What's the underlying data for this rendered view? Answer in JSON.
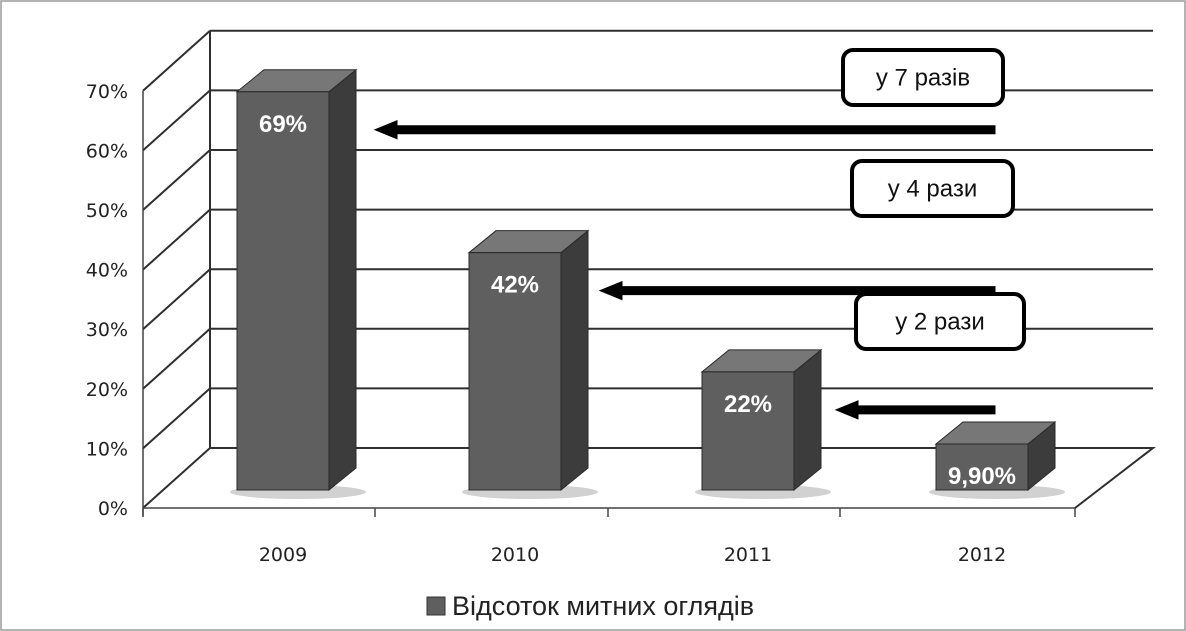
{
  "chart_data": {
    "type": "bar",
    "categories": [
      "2009",
      "2010",
      "2011",
      "2012"
    ],
    "series": [
      {
        "name": "Відсоток митних оглядів",
        "values": [
          69,
          42,
          22,
          9.9
        ]
      }
    ],
    "data_labels": [
      "69%",
      "42%",
      "22%",
      "9,90%"
    ],
    "y_ticks": [
      "0%",
      "10%",
      "20%",
      "30%",
      "40%",
      "50%",
      "60%",
      "70%"
    ],
    "ylim": [
      0,
      70
    ],
    "grid": true,
    "legend": "bottom",
    "annotations": [
      {
        "text": "у 7 разів",
        "from": "2012",
        "to": "2009"
      },
      {
        "text": "у 4 рази",
        "from": "2012",
        "to": "2010"
      },
      {
        "text": "у 2 рази",
        "from": "2012",
        "to": "2011"
      }
    ],
    "colors": {
      "bar_front": "#5f5f5f",
      "bar_side": "#3c3c3c",
      "bar_top": "#777777",
      "grid": "#2f2f2f"
    }
  }
}
